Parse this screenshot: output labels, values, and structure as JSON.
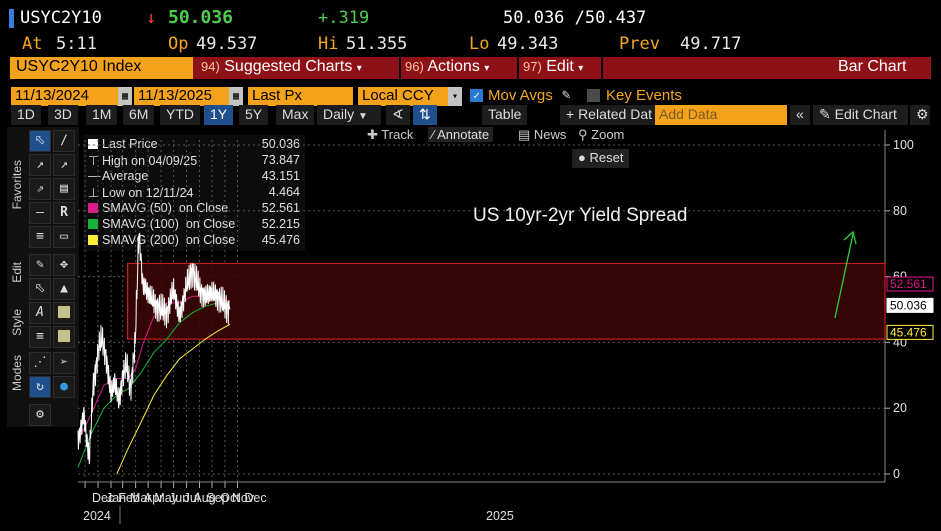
{
  "quote": {
    "ticker": "USYC2Y10",
    "arrow": "↓",
    "last": "50.036",
    "change": "+.319",
    "bid_ask": "50.036 /50.437",
    "at_label": "At",
    "at_time": "5:11",
    "open_label": "Op",
    "open": "49.537",
    "high_label": "Hi",
    "high": "51.355",
    "low_label": "Lo",
    "low": "49.343",
    "prev_label": "Prev",
    "prev": "49.717"
  },
  "command_bar": {
    "security": "USYC2Y10 Index",
    "items": [
      {
        "num": "94)",
        "label": "Suggested Charts"
      },
      {
        "num": "96)",
        "label": "Actions"
      },
      {
        "num": "97)",
        "label": "Edit"
      }
    ],
    "view": "Bar Chart"
  },
  "settings": {
    "start_date": "11/13/2024",
    "end_date": "11/13/2025",
    "field": "Last Px",
    "currency": "Local CCY",
    "mov_avgs": "Mov Avgs",
    "key_events": "Key Events"
  },
  "periods": [
    "1D",
    "3D",
    "1M",
    "6M",
    "YTD",
    "1Y",
    "5Y",
    "Max"
  ],
  "active_period": "1Y",
  "toolbar": {
    "frequency": "Daily",
    "table": "Table",
    "related": "+ Related Dat",
    "add_data_placeholder": "Add Data",
    "edit_chart": "Edit Chart"
  },
  "chart_tools": {
    "track": "Track",
    "annotate": "Annotate",
    "news": "News",
    "zoom": "Zoom",
    "reset": "Reset"
  },
  "side_labels": {
    "favorites": "Favorites",
    "edit": "Edit",
    "style": "Style",
    "modes": "Modes"
  },
  "legend": [
    {
      "label": "Last Price",
      "value": "50.036",
      "color": "#ffffff",
      "kind": "box"
    },
    {
      "label": "High on 04/09/25",
      "value": "73.847",
      "color": "#cfcfcf",
      "kind": "high"
    },
    {
      "label": "Average",
      "value": "43.151",
      "color": "#cfcfcf",
      "kind": "avg"
    },
    {
      "label": "Low on 12/11/24",
      "value": "4.464",
      "color": "#cfcfcf",
      "kind": "low"
    },
    {
      "label": "SMAVG (50)  on Close",
      "value": "52.561",
      "color": "#e0198c",
      "kind": "box"
    },
    {
      "label": "SMAVG (100)  on Close",
      "value": "52.215",
      "color": "#17b53a",
      "kind": "box"
    },
    {
      "label": "SMAVG (200)  on Close",
      "value": "45.476",
      "color": "#ffef3a",
      "kind": "box"
    }
  ],
  "chart_data": {
    "type": "line",
    "title": "US 10yr-2yr Yield Spread",
    "ylim": [
      -3,
      102
    ],
    "y_ticks": [
      0,
      20,
      40,
      60,
      80,
      100
    ],
    "x_months": [
      "Dec",
      "Jan",
      "Feb",
      "Mar",
      "Apr",
      "May",
      "Jun",
      "Jul",
      "Aug",
      "Sep",
      "Oct",
      "Nov",
      "Dec"
    ],
    "x_years": [
      "2024",
      "2025"
    ],
    "series": [
      {
        "name": "Last Price",
        "color": "#ffffff",
        "x": [
          "2024-11-14",
          "2024-11-28",
          "2024-12-11",
          "2024-12-20",
          "2025-01-02",
          "2025-01-10",
          "2025-01-20",
          "2025-02-01",
          "2025-02-10",
          "2025-02-20",
          "2025-03-01",
          "2025-03-10",
          "2025-03-20",
          "2025-03-31",
          "2025-04-04",
          "2025-04-09",
          "2025-04-18",
          "2025-05-01",
          "2025-05-15",
          "2025-06-01",
          "2025-06-15",
          "2025-07-01",
          "2025-07-15",
          "2025-08-01",
          "2025-08-15",
          "2025-09-01",
          "2025-09-15",
          "2025-10-01",
          "2025-10-15",
          "2025-11-01",
          "2025-11-13"
        ],
        "y": [
          10,
          18,
          4.5,
          26,
          38,
          41,
          36,
          24,
          28,
          22,
          30,
          33,
          26,
          40,
          55,
          73.8,
          58,
          55,
          52,
          50,
          49,
          56,
          48,
          57,
          62,
          56,
          54,
          55,
          54,
          51,
          50.0
        ]
      },
      {
        "name": "SMAVG (50) on Close",
        "color": "#e0198c",
        "x": [
          "2024-11-14",
          "2024-12-15",
          "2025-01-15",
          "2025-02-15",
          "2025-03-15",
          "2025-04-01",
          "2025-04-20",
          "2025-05-15",
          "2025-06-15",
          "2025-07-15",
          "2025-08-15",
          "2025-09-15",
          "2025-10-15",
          "2025-11-13"
        ],
        "y": [
          10,
          18,
          27,
          29,
          29,
          32,
          40,
          48,
          52,
          52,
          54,
          54,
          53,
          52.6
        ]
      },
      {
        "name": "SMAVG (100) on Close",
        "color": "#17b53a",
        "x": [
          "2024-11-14",
          "2024-12-15",
          "2025-01-15",
          "2025-02-15",
          "2025-03-15",
          "2025-04-15",
          "2025-05-15",
          "2025-06-15",
          "2025-07-15",
          "2025-08-15",
          "2025-09-15",
          "2025-10-15",
          "2025-11-13"
        ],
        "y": [
          2,
          12,
          20,
          24,
          26,
          31,
          37,
          41,
          46,
          49,
          51,
          52,
          52.2
        ]
      },
      {
        "name": "SMAVG (200) on Close",
        "color": "#ffef3a",
        "x": [
          "2025-02-15",
          "2025-03-15",
          "2025-04-15",
          "2025-05-15",
          "2025-06-15",
          "2025-07-15",
          "2025-08-15",
          "2025-09-15",
          "2025-10-15",
          "2025-11-13"
        ],
        "y": [
          0,
          8,
          16,
          24,
          30,
          35,
          38,
          41,
          43.5,
          45.5
        ]
      }
    ],
    "range_box": {
      "x_start": "2025-04-01",
      "x_end": "2025-12-31",
      "y_low": 41,
      "y_high": 64
    },
    "axis_badges": [
      {
        "value": "52.561",
        "color": "#e0198c"
      },
      {
        "value": "50.036",
        "color": "#ffffff"
      },
      {
        "value": "45.476",
        "color": "#ffef3a"
      }
    ]
  }
}
